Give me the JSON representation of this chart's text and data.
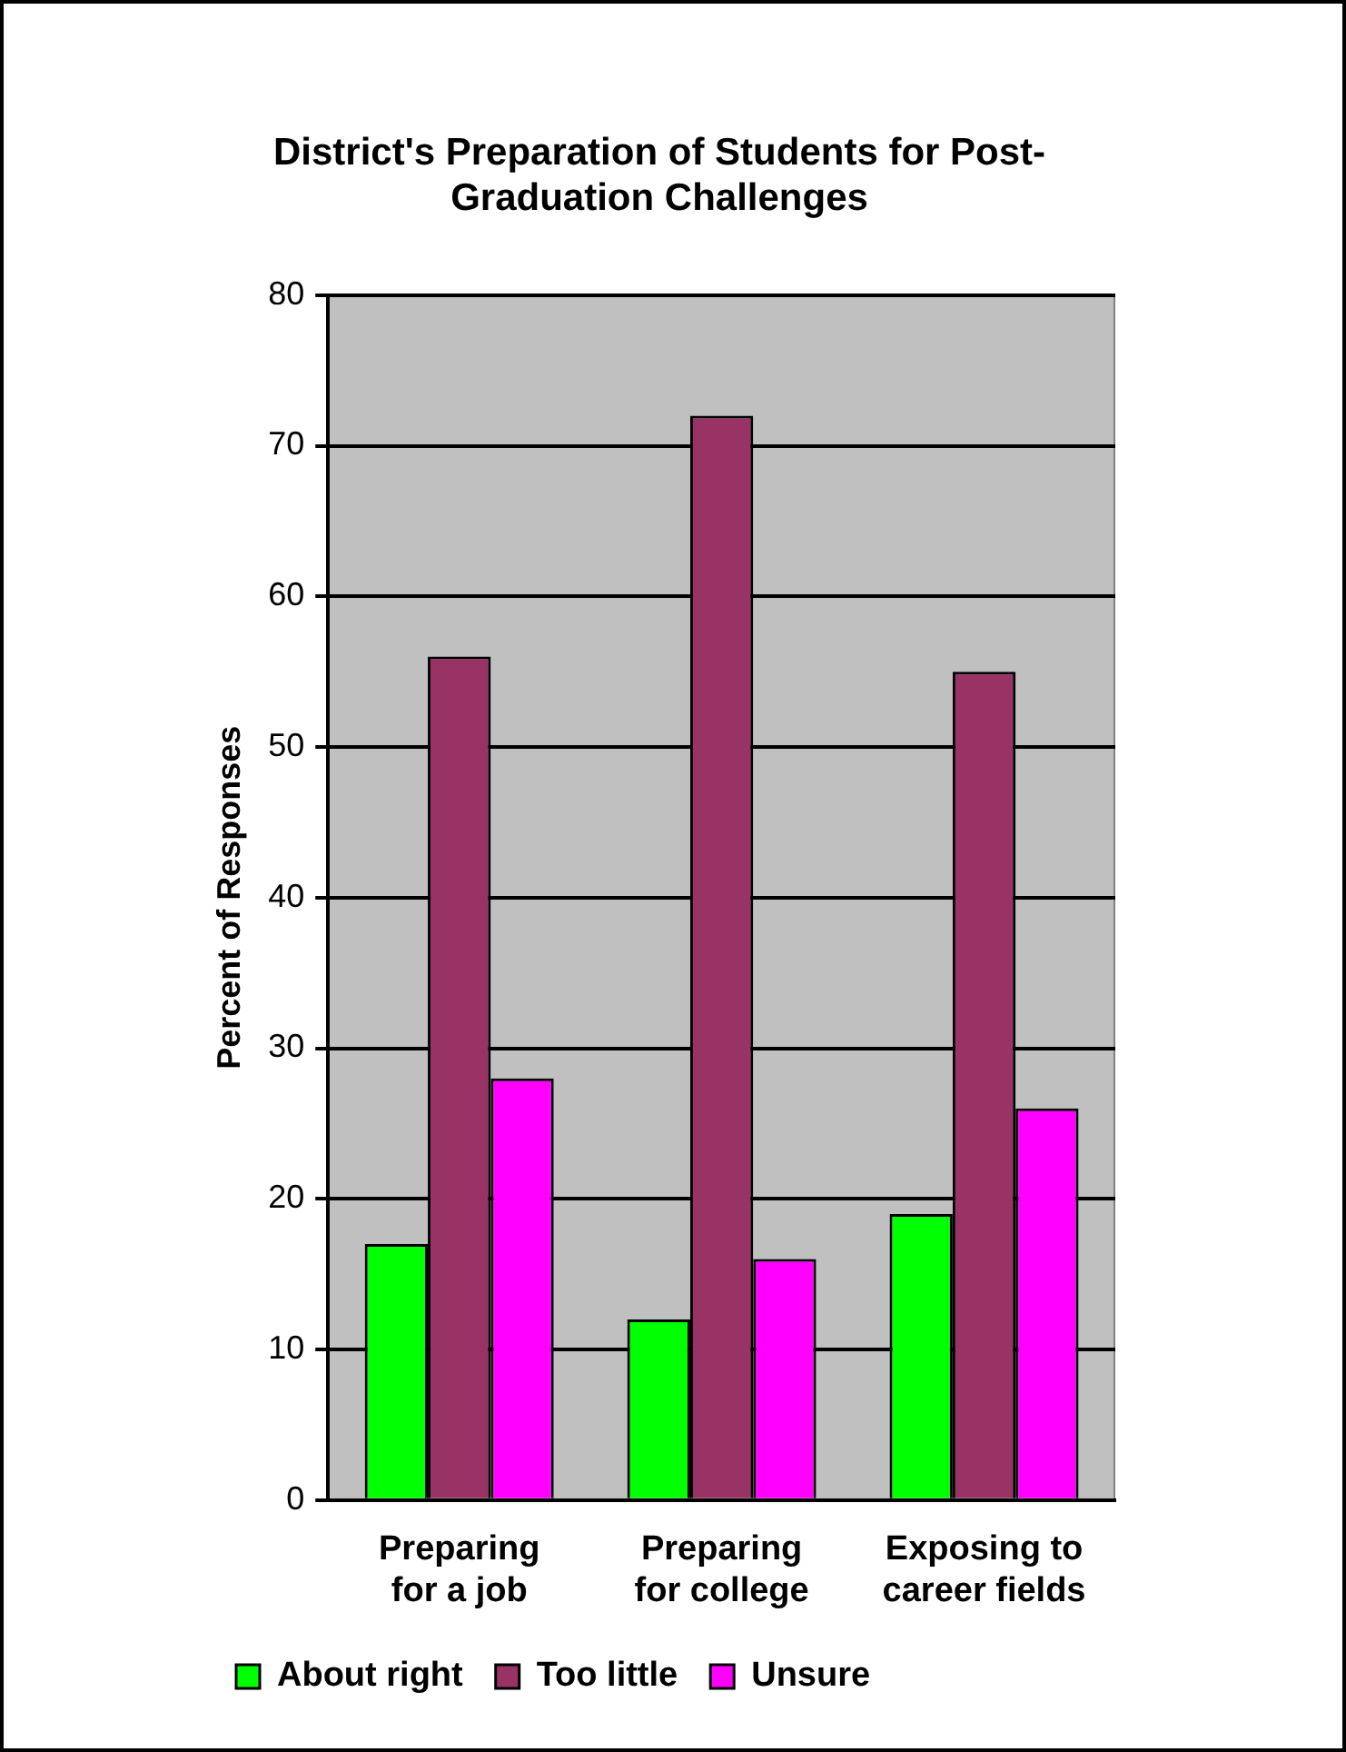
{
  "chart_data": {
    "type": "bar",
    "title": "District's Preparation of Students for Post-Graduation Challenges",
    "ylabel": "Percent of Responses",
    "categories": [
      "Preparing for a job",
      "Preparing for college",
      "Exposing to career fields"
    ],
    "series": [
      {
        "name": "About right",
        "color": "#00ff00",
        "values": [
          17,
          12,
          19
        ]
      },
      {
        "name": "Too little",
        "color": "#993366",
        "values": [
          56,
          72,
          55
        ]
      },
      {
        "name": "Unsure",
        "color": "#ff00ff",
        "values": [
          28,
          16,
          26
        ]
      }
    ],
    "ylim": [
      0,
      80
    ],
    "yticks": [
      0,
      10,
      20,
      30,
      40,
      50,
      60,
      70,
      80
    ],
    "grid": "y",
    "legend": "bottom left"
  }
}
